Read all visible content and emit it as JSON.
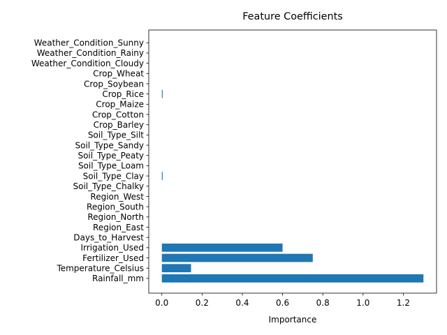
{
  "chart_data": {
    "type": "bar",
    "orientation": "horizontal",
    "title": "Feature Coefficients",
    "xlabel": "Importance",
    "ylabel": "",
    "xlim": [
      -0.065,
      1.365
    ],
    "xticks": [
      0.0,
      0.2,
      0.4,
      0.6,
      0.8,
      1.0,
      1.2
    ],
    "xtick_labels": [
      "0.0",
      "0.2",
      "0.4",
      "0.6",
      "0.8",
      "1.0",
      "1.2"
    ],
    "grid": false,
    "bar_color": "#1f77b4",
    "categories": [
      "Rainfall_mm",
      "Temperature_Celsius",
      "Fertilizer_Used",
      "Irrigation_Used",
      "Days_to_Harvest",
      "Region_East",
      "Region_North",
      "Region_South",
      "Region_West",
      "Soil_Type_Chalky",
      "Soil_Type_Clay",
      "Soil_Type_Loam",
      "Soil_Type_Peaty",
      "Soil_Type_Sandy",
      "Soil_Type_Silt",
      "Crop_Barley",
      "Crop_Cotton",
      "Crop_Maize",
      "Crop_Rice",
      "Crop_Soybean",
      "Crop_Wheat",
      "Weather_Condition_Cloudy",
      "Weather_Condition_Rainy",
      "Weather_Condition_Sunny"
    ],
    "values": [
      1.3,
      0.145,
      0.75,
      0.6,
      0.0,
      0.0,
      0.0,
      0.0,
      0.0,
      0.0,
      0.004,
      0.0,
      0.0,
      0.0,
      0.0,
      0.0,
      0.0,
      0.0,
      0.004,
      0.0,
      0.0,
      0.0,
      0.0,
      0.0
    ]
  }
}
